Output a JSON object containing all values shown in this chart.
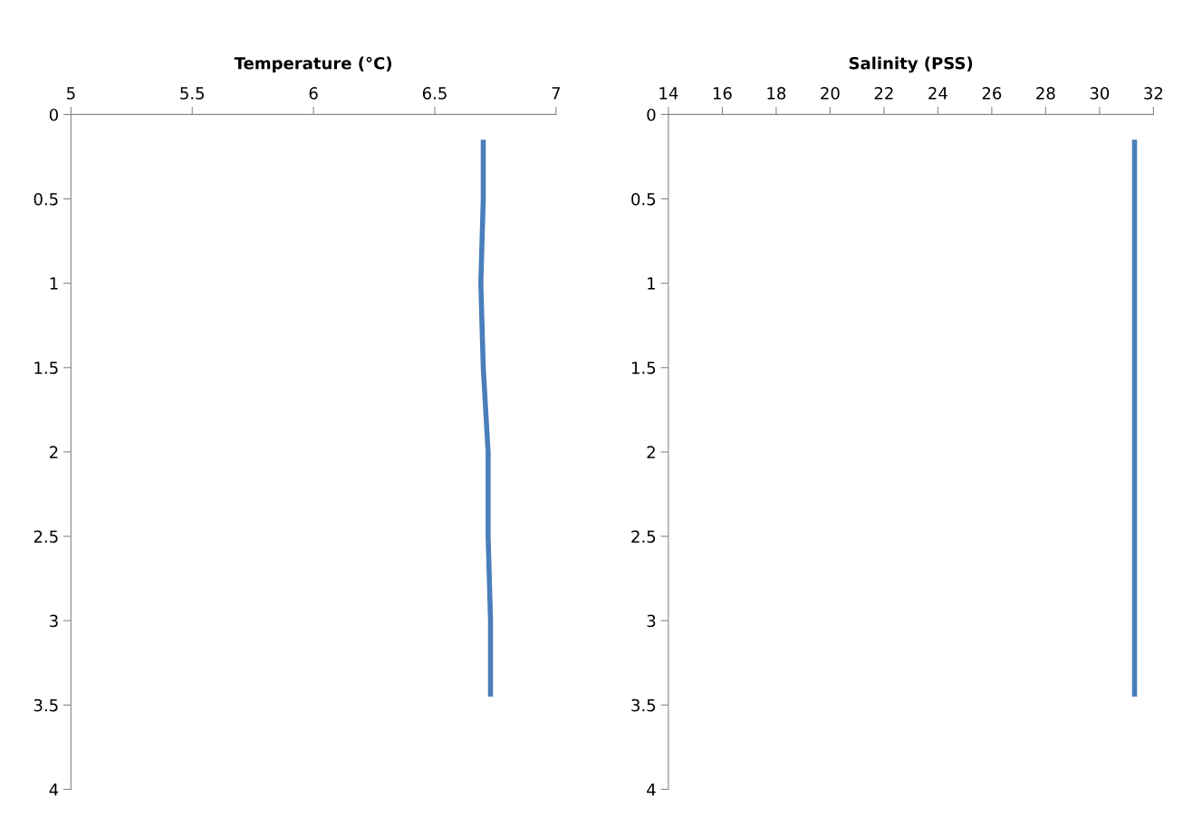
{
  "chart_data": [
    {
      "type": "line",
      "xlabel": "Temperature (°C)",
      "xlim": [
        5,
        7
      ],
      "xticks": [
        5,
        5.5,
        6,
        6.5,
        7
      ],
      "ylim": [
        4,
        0
      ],
      "yticks": [
        0,
        0.5,
        1,
        1.5,
        2,
        2.5,
        3,
        3.5,
        4
      ],
      "grid": false,
      "legend": false,
      "marker": "none",
      "line_style": "solid",
      "series": [
        {
          "color": "#4a7ebb",
          "x": [
            6.7,
            6.7,
            6.69,
            6.7,
            6.72,
            6.72,
            6.73,
            6.73
          ],
          "values": [
            0.15,
            0.5,
            1.0,
            1.5,
            2.0,
            2.5,
            3.0,
            3.45
          ]
        }
      ]
    },
    {
      "type": "line",
      "xlabel": "Salinity (PSS)",
      "xlim": [
        14,
        32
      ],
      "xticks": [
        14,
        16,
        18,
        20,
        22,
        24,
        26,
        28,
        30,
        32
      ],
      "ylim": [
        4,
        0
      ],
      "yticks": [
        0,
        0.5,
        1,
        1.5,
        2,
        2.5,
        3,
        3.5,
        4
      ],
      "grid": false,
      "legend": false,
      "marker": "none",
      "line_style": "solid",
      "series": [
        {
          "color": "#4a7ebb",
          "x": [
            31.3,
            31.3,
            31.3,
            31.3,
            31.3,
            31.3,
            31.3,
            31.3
          ],
          "values": [
            0.15,
            0.5,
            1.0,
            1.5,
            2.0,
            2.5,
            3.0,
            3.45
          ]
        }
      ]
    }
  ]
}
